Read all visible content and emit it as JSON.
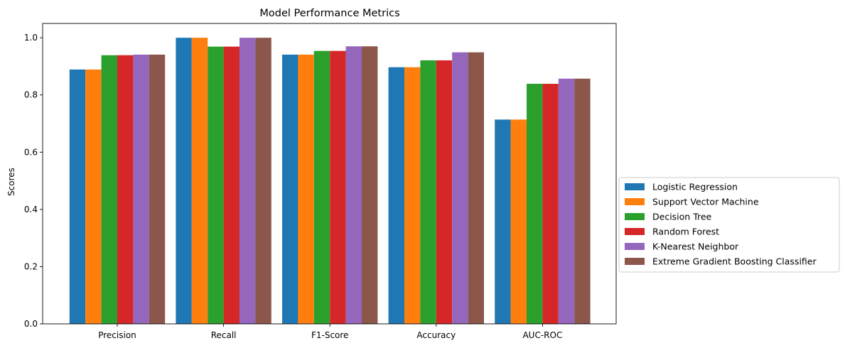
{
  "chart_data": {
    "type": "bar",
    "title": "Model Performance Metrics",
    "xlabel": "",
    "ylabel": "Scores",
    "ylim": [
      0,
      1.05
    ],
    "yticks": [
      "0.0",
      "0.2",
      "0.4",
      "0.6",
      "0.8",
      "1.0"
    ],
    "categories": [
      "Precision",
      "Recall",
      "F1-Score",
      "Accuracy",
      "AUC-ROC"
    ],
    "series": [
      {
        "name": "Logistic Regression",
        "color": "#1f77b4",
        "values": [
          0.889,
          1.0,
          0.941,
          0.897,
          0.714
        ]
      },
      {
        "name": "Support Vector Machine",
        "color": "#ff7f0e",
        "values": [
          0.889,
          1.0,
          0.941,
          0.897,
          0.714
        ]
      },
      {
        "name": "Decision Tree",
        "color": "#2ca02c",
        "values": [
          0.939,
          0.969,
          0.954,
          0.921,
          0.839
        ]
      },
      {
        "name": "Random Forest",
        "color": "#d62728",
        "values": [
          0.939,
          0.969,
          0.954,
          0.921,
          0.839
        ]
      },
      {
        "name": "K-Nearest Neighbor",
        "color": "#9467bd",
        "values": [
          0.941,
          1.0,
          0.97,
          0.949,
          0.857
        ]
      },
      {
        "name": "Extreme Gradient Boosting Classifier",
        "color": "#8c564b",
        "values": [
          0.941,
          1.0,
          0.97,
          0.949,
          0.857
        ]
      }
    ],
    "grid": false,
    "legend_position": "center-right outside"
  }
}
